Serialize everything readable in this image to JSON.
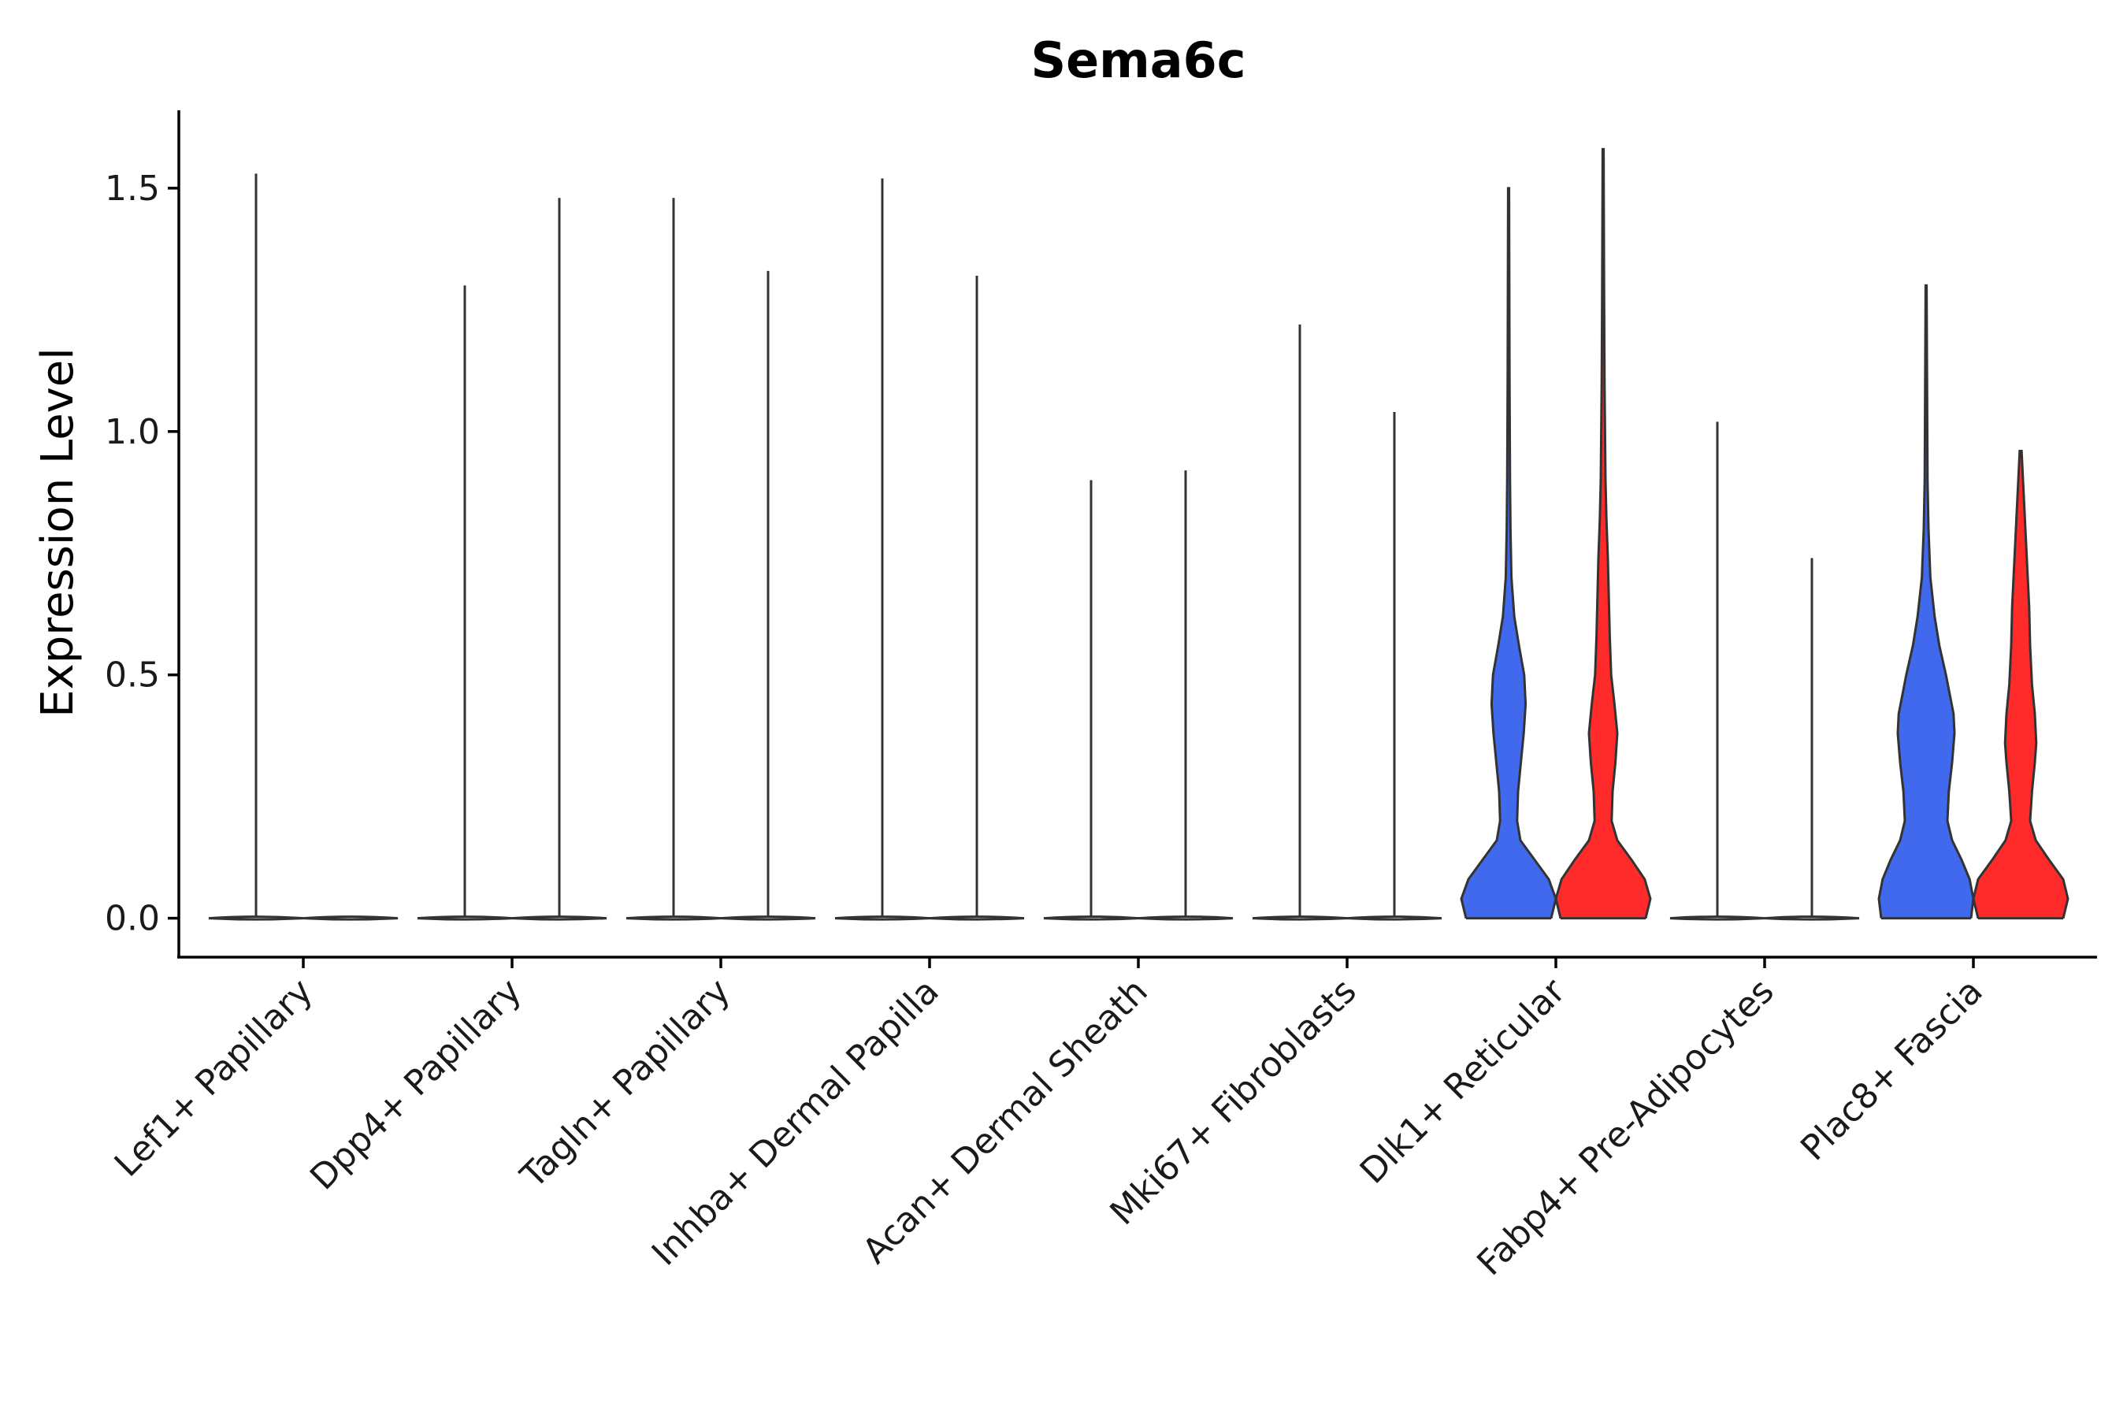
{
  "chart_data": {
    "type": "violin",
    "title": "Sema6c",
    "xlabel": "",
    "ylabel": "Expression Level",
    "ylim": [
      -0.08,
      1.66
    ],
    "yticks": [
      "0.0",
      "0.5",
      "1.0",
      "1.5"
    ],
    "ytick_values": [
      0,
      0.5,
      1.0,
      1.5
    ],
    "grid": false,
    "legend": "none",
    "categories": [
      "Lef1+ Papillary",
      "Dpp4+ Papillary",
      "Tagln+ Papillary",
      "Inhba+ Dermal Papilla",
      "Acan+ Dermal Sheath",
      "Mki67+ Fibroblasts",
      "Dlk1+ Reticular",
      "Fabp4+ Pre-Adipocytes",
      "Plac8+ Fascia"
    ],
    "series": [
      {
        "color": "#4169ee",
        "max_values": [
          1.53,
          1.3,
          1.48,
          1.52,
          0.9,
          1.22,
          1.5,
          1.02,
          1.3
        ]
      },
      {
        "color": "#ff2b2b",
        "max_values": [
          0.0,
          1.48,
          1.33,
          1.32,
          0.92,
          1.04,
          1.58,
          0.74,
          0.96
        ]
      }
    ],
    "density_profiles": [
      {
        "category": 6,
        "series": 0,
        "profile": [
          [
            0,
            0.9
          ],
          [
            0.04,
            1.0
          ],
          [
            0.08,
            0.85
          ],
          [
            0.12,
            0.55
          ],
          [
            0.16,
            0.25
          ],
          [
            0.2,
            0.18
          ],
          [
            0.26,
            0.2
          ],
          [
            0.32,
            0.26
          ],
          [
            0.38,
            0.32
          ],
          [
            0.44,
            0.36
          ],
          [
            0.5,
            0.33
          ],
          [
            0.56,
            0.22
          ],
          [
            0.62,
            0.12
          ],
          [
            0.7,
            0.06
          ],
          [
            0.8,
            0.04
          ],
          [
            0.9,
            0.03
          ],
          [
            1.1,
            0.02
          ],
          [
            1.3,
            0.015
          ],
          [
            1.5,
            0.01
          ]
        ]
      },
      {
        "category": 6,
        "series": 1,
        "profile": [
          [
            0,
            0.9
          ],
          [
            0.04,
            1.0
          ],
          [
            0.08,
            0.88
          ],
          [
            0.12,
            0.6
          ],
          [
            0.16,
            0.3
          ],
          [
            0.2,
            0.18
          ],
          [
            0.26,
            0.2
          ],
          [
            0.32,
            0.26
          ],
          [
            0.38,
            0.3
          ],
          [
            0.44,
            0.24
          ],
          [
            0.5,
            0.17
          ],
          [
            0.58,
            0.14
          ],
          [
            0.66,
            0.12
          ],
          [
            0.74,
            0.1
          ],
          [
            0.82,
            0.07
          ],
          [
            0.9,
            0.05
          ],
          [
            1.1,
            0.03
          ],
          [
            1.3,
            0.02
          ],
          [
            1.58,
            0.01
          ]
        ]
      },
      {
        "category": 8,
        "series": 0,
        "profile": [
          [
            0,
            0.95
          ],
          [
            0.04,
            1.0
          ],
          [
            0.08,
            0.92
          ],
          [
            0.12,
            0.75
          ],
          [
            0.16,
            0.55
          ],
          [
            0.2,
            0.45
          ],
          [
            0.26,
            0.48
          ],
          [
            0.32,
            0.55
          ],
          [
            0.38,
            0.6
          ],
          [
            0.42,
            0.58
          ],
          [
            0.5,
            0.42
          ],
          [
            0.56,
            0.28
          ],
          [
            0.62,
            0.18
          ],
          [
            0.7,
            0.09
          ],
          [
            0.8,
            0.05
          ],
          [
            0.9,
            0.03
          ],
          [
            1.1,
            0.02
          ],
          [
            1.3,
            0.01
          ]
        ]
      },
      {
        "category": 8,
        "series": 1,
        "profile": [
          [
            0,
            0.9
          ],
          [
            0.04,
            1.0
          ],
          [
            0.08,
            0.9
          ],
          [
            0.12,
            0.6
          ],
          [
            0.16,
            0.32
          ],
          [
            0.2,
            0.2
          ],
          [
            0.26,
            0.24
          ],
          [
            0.32,
            0.3
          ],
          [
            0.36,
            0.33
          ],
          [
            0.42,
            0.3
          ],
          [
            0.48,
            0.24
          ],
          [
            0.56,
            0.2
          ],
          [
            0.64,
            0.18
          ],
          [
            0.72,
            0.14
          ],
          [
            0.8,
            0.1
          ],
          [
            0.88,
            0.06
          ],
          [
            0.96,
            0.02
          ]
        ]
      }
    ]
  }
}
